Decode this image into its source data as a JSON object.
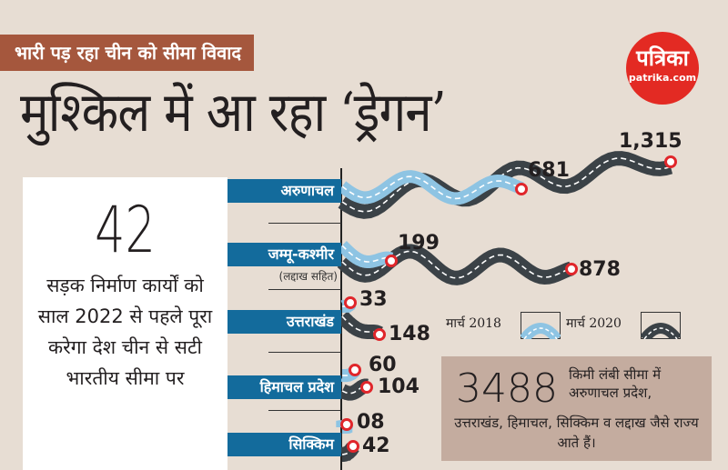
{
  "kicker": "भारी पड़ रहा चीन को सीमा विवाद",
  "headline": "मुश्किल में आ रहा ‘ड्रेगन’",
  "logo": {
    "name": "पत्रिका",
    "site": "patrika.com",
    "color": "#e32a23"
  },
  "panel": {
    "number": "42",
    "text": "सड़क निर्माण कार्यों को साल 2022 से पहले पूरा करेगा देश चीन से सटी भारतीय सीमा पर"
  },
  "info_box": {
    "number": "3488",
    "text_top": "किमी लंबी सीमा में अरुणाचल प्रदेश,",
    "text_bottom": "उत्तराखंड, हिमाचल, सिक्किम व लद्दाख जैसे राज्य आते हैं।"
  },
  "colors": {
    "label_bg": "#136b9c",
    "road_2018": "#8ec4e3",
    "road_2020": "#3b4247",
    "pin": "#e0262b",
    "kicker_bg": "#a5573d",
    "background": "#e7ddd3"
  },
  "chart_data": {
    "type": "bar",
    "categories": [
      "अरुणाचल",
      "जम्मू-कश्मीर",
      "उत्तराखंड",
      "हिमाचल प्रदेश",
      "सिक्किम"
    ],
    "category_note": {
      "जम्मू-कश्मीर": "(लद्दाख सहित)"
    },
    "series": [
      {
        "name": "मार्च 2018",
        "values": [
          681,
          199,
          33,
          60,
          8
        ],
        "labels": [
          "681",
          "199",
          "33",
          "60",
          "08"
        ]
      },
      {
        "name": "मार्च 2020",
        "values": [
          1315,
          878,
          148,
          104,
          42
        ],
        "labels": [
          "1,315",
          "878",
          "148",
          "104",
          "42"
        ]
      }
    ],
    "legend": "middle-right"
  }
}
